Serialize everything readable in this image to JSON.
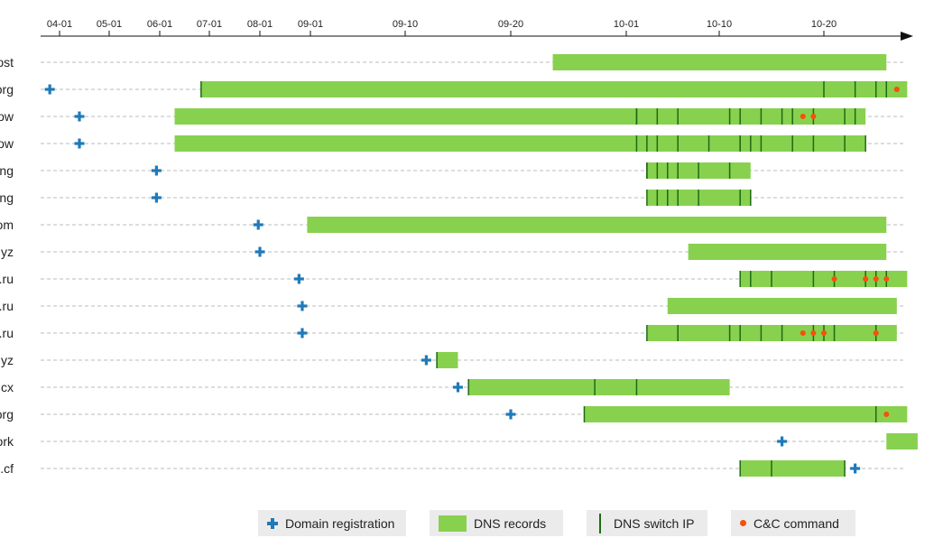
{
  "chart_data": {
    "type": "timeline",
    "title": "",
    "x_axis": {
      "ticks": [
        "04-01",
        "05-01",
        "06-01",
        "07-01",
        "08-01",
        "09-01",
        "09-10",
        "09-20",
        "10-01",
        "10-10",
        "10-20"
      ],
      "tick_dates": [
        "04-01",
        "05-01",
        "06-01",
        "07-01",
        "08-01",
        "09-01",
        "09-10",
        "09-20",
        "10-01",
        "10-10",
        "10-20"
      ]
    },
    "rows": [
      {
        "label": "ost",
        "registration": null,
        "dns": [
          [
            "09-24",
            "10-26"
          ]
        ],
        "switches": [],
        "cc": []
      },
      {
        "label": "org",
        "registration": "03-26",
        "dns": [
          [
            "06-26",
            "10-28"
          ]
        ],
        "switches": [
          "06-26",
          "10-20",
          "10-23",
          "10-25",
          "10-26"
        ],
        "cc": [
          "10-27",
          "10-27"
        ]
      },
      {
        "label": "ow",
        "registration": "04-13",
        "dns": [
          [
            "06-10",
            "10-24"
          ]
        ],
        "switches": [
          "10-02",
          "10-02",
          "10-04",
          "10-06",
          "10-11",
          "10-12",
          "10-14",
          "10-16",
          "10-17",
          "10-19",
          "10-22",
          "10-23"
        ],
        "cc": [
          "10-18",
          "10-19"
        ]
      },
      {
        "label": "ow",
        "registration": "04-13",
        "dns": [
          [
            "06-10",
            "10-24"
          ]
        ],
        "switches": [
          "10-02",
          "10-03",
          "10-04",
          "10-06",
          "10-09",
          "10-12",
          "10-12",
          "10-13",
          "10-14",
          "10-17",
          "10-19",
          "10-22",
          "10-24"
        ],
        "cc": []
      },
      {
        "label": "ng",
        "registration": "05-30",
        "dns": [
          [
            "10-03",
            "10-13"
          ]
        ],
        "switches": [
          "10-03",
          "10-03",
          "10-04",
          "10-05",
          "10-06",
          "10-08",
          "10-11"
        ],
        "cc": []
      },
      {
        "label": "ng",
        "registration": "05-30",
        "dns": [
          [
            "10-03",
            "10-13"
          ]
        ],
        "switches": [
          "10-03",
          "10-04",
          "10-05",
          "10-05",
          "10-06",
          "10-08",
          "10-12",
          "10-13"
        ],
        "cc": []
      },
      {
        "label": "om",
        "registration": "07-31",
        "dns": [
          [
            "08-30",
            "10-26"
          ]
        ],
        "switches": [],
        "cc": []
      },
      {
        "label": "yz",
        "registration": "08-01",
        "dns": [
          [
            "10-07",
            "10-26"
          ]
        ],
        "switches": [],
        "cc": []
      },
      {
        "label": ".ru",
        "registration": "08-25",
        "dns": [
          [
            "10-12",
            "10-28"
          ]
        ],
        "switches": [
          "10-12",
          "10-13",
          "10-15",
          "10-19",
          "10-21",
          "10-24",
          "10-25",
          "10-26"
        ],
        "cc": [
          "10-21",
          "10-24",
          "10-24",
          "10-25",
          "10-26"
        ]
      },
      {
        "label": ".ru",
        "registration": "08-27",
        "dns": [
          [
            "10-05",
            "10-27"
          ]
        ],
        "switches": [],
        "cc": []
      },
      {
        "label": ".ru",
        "registration": "08-27",
        "dns": [
          [
            "10-03",
            "10-27"
          ]
        ],
        "switches": [
          "10-03",
          "10-06",
          "10-11",
          "10-12",
          "10-14",
          "10-16",
          "10-19",
          "10-20",
          "10-21",
          "10-25"
        ],
        "cc": [
          "10-18",
          "10-19",
          "10-20",
          "10-25",
          "10-25"
        ]
      },
      {
        "label": "yz",
        "registration": "09-12",
        "dns": [
          [
            "09-13",
            "09-15"
          ]
        ],
        "switches": [
          "09-13"
        ],
        "cc": []
      },
      {
        "label": "cx",
        "registration": "09-15",
        "dns": [
          [
            "09-16",
            "10-11"
          ]
        ],
        "switches": [
          "09-16",
          "09-28",
          "10-02"
        ],
        "cc": []
      },
      {
        "label": "org",
        "registration": "09-20",
        "dns": [
          [
            "09-27",
            "10-28"
          ]
        ],
        "switches": [
          "09-27",
          "10-25"
        ],
        "cc": [
          "10-26"
        ]
      },
      {
        "label": "ork",
        "registration": "10-16",
        "dns": [
          [
            "10-26",
            "10-29"
          ]
        ],
        "switches": [],
        "cc": []
      },
      {
        "label": ".cf",
        "registration": "10-23",
        "dns": [
          [
            "10-12",
            "10-22"
          ]
        ],
        "switches": [
          "10-12",
          "10-15",
          "10-22"
        ],
        "cc": []
      }
    ],
    "legend": [
      "Domain registration",
      "DNS records",
      "DNS switch IP",
      "C&C command"
    ],
    "legend_position": "bottom",
    "grid": false
  },
  "colors": {
    "registration": "#1f7ab8",
    "dns": "#88d14f",
    "switch": "#1c6b14",
    "cc": "#f4510b",
    "guide": "#bbbbbb",
    "legend_bg": "#ebebeb"
  },
  "legend_labels": {
    "registration": "Domain registration",
    "dns": "DNS records",
    "switch": "DNS switch IP",
    "cc": "C&C command"
  }
}
